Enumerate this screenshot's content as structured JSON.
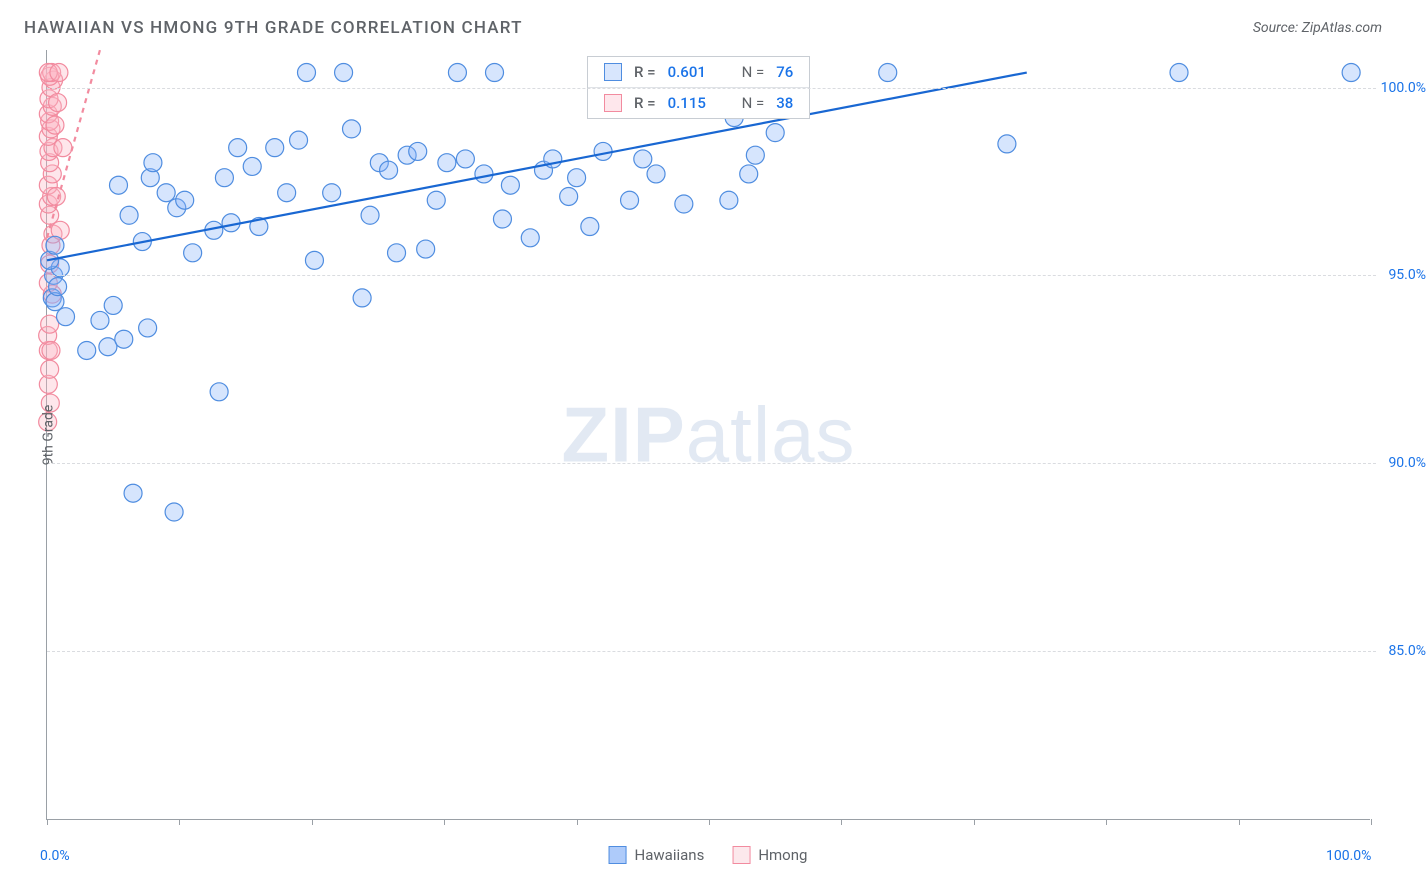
{
  "title": "HAWAIIAN VS HMONG 9TH GRADE CORRELATION CHART",
  "source": "Source: ZipAtlas.com",
  "y_axis_label": "9th Grade",
  "watermark_a": "ZIP",
  "watermark_b": "atlas",
  "chart": {
    "type": "scatter",
    "background_color": "#ffffff",
    "grid_color": "#dadce0",
    "axis_color": "#9aa0a6",
    "tick_label_color": "#1a73e8",
    "label_fontsize": 14,
    "title_fontsize": 17,
    "xlim": [
      0,
      100
    ],
    "ylim": [
      80.5,
      101
    ],
    "x_ticks_minor": [
      0,
      10,
      20,
      30,
      40,
      50,
      60,
      70,
      80,
      90,
      100
    ],
    "y_gridlines": [
      85,
      90,
      95,
      100
    ],
    "x_tick_labels": [
      {
        "v": 0,
        "label": "0.0%"
      },
      {
        "v": 100,
        "label": "100.0%"
      }
    ],
    "y_tick_labels": [
      {
        "v": 85,
        "label": "85.0%"
      },
      {
        "v": 90,
        "label": "90.0%"
      },
      {
        "v": 95,
        "label": "95.0%"
      },
      {
        "v": 100,
        "label": "100.0%"
      }
    ],
    "marker_radius": 9,
    "marker_fill_opacity": 0.35,
    "marker_stroke_width": 1.2,
    "trend_line_width": 2.2,
    "series": [
      {
        "name": "Hawaiians",
        "color": "#8ab4f8",
        "stroke": "#4f8de0",
        "trend_color": "#1967d2",
        "trend_dash": "none",
        "R": "0.601",
        "N": "76",
        "trend": {
          "x1": 0,
          "y1": 95.4,
          "x2": 74,
          "y2": 100.4
        },
        "points": [
          [
            0.4,
            94.4
          ],
          [
            0.5,
            95.0
          ],
          [
            0.6,
            94.3
          ],
          [
            0.8,
            94.7
          ],
          [
            1.0,
            95.2
          ],
          [
            1.4,
            93.9
          ],
          [
            3.0,
            93.0
          ],
          [
            4.0,
            93.8
          ],
          [
            4.6,
            93.1
          ],
          [
            5.0,
            94.2
          ],
          [
            5.4,
            97.4
          ],
          [
            5.8,
            93.3
          ],
          [
            6.2,
            96.6
          ],
          [
            6.5,
            89.2
          ],
          [
            7.2,
            95.9
          ],
          [
            7.6,
            93.6
          ],
          [
            7.8,
            97.6
          ],
          [
            8.0,
            98.0
          ],
          [
            9.0,
            97.2
          ],
          [
            9.6,
            88.7
          ],
          [
            9.8,
            96.8
          ],
          [
            10.4,
            97.0
          ],
          [
            11.0,
            95.6
          ],
          [
            12.6,
            96.2
          ],
          [
            13.0,
            91.9
          ],
          [
            13.4,
            97.6
          ],
          [
            13.9,
            96.4
          ],
          [
            14.4,
            98.4
          ],
          [
            15.5,
            97.9
          ],
          [
            16.0,
            96.3
          ],
          [
            17.2,
            98.4
          ],
          [
            18.1,
            97.2
          ],
          [
            19.0,
            98.6
          ],
          [
            19.6,
            100.4
          ],
          [
            20.2,
            95.4
          ],
          [
            21.5,
            97.2
          ],
          [
            22.4,
            100.4
          ],
          [
            23.0,
            98.9
          ],
          [
            23.8,
            94.4
          ],
          [
            24.4,
            96.6
          ],
          [
            25.1,
            98.0
          ],
          [
            25.8,
            97.8
          ],
          [
            26.4,
            95.6
          ],
          [
            27.2,
            98.2
          ],
          [
            28.0,
            98.3
          ],
          [
            28.6,
            95.7
          ],
          [
            29.4,
            97.0
          ],
          [
            30.2,
            98.0
          ],
          [
            31.0,
            100.4
          ],
          [
            31.6,
            98.1
          ],
          [
            33.0,
            97.7
          ],
          [
            33.8,
            100.4
          ],
          [
            34.4,
            96.5
          ],
          [
            35.0,
            97.4
          ],
          [
            36.5,
            96.0
          ],
          [
            37.5,
            97.8
          ],
          [
            38.2,
            98.1
          ],
          [
            39.4,
            97.1
          ],
          [
            40.0,
            97.6
          ],
          [
            41.0,
            96.3
          ],
          [
            42.0,
            98.3
          ],
          [
            44.0,
            97.0
          ],
          [
            45.0,
            98.1
          ],
          [
            46.0,
            97.7
          ],
          [
            48.1,
            96.9
          ],
          [
            51.5,
            97.0
          ],
          [
            51.9,
            99.2
          ],
          [
            53.0,
            97.7
          ],
          [
            53.5,
            98.2
          ],
          [
            55.0,
            98.8
          ],
          [
            63.5,
            100.4
          ],
          [
            72.5,
            98.5
          ],
          [
            85.5,
            100.4
          ],
          [
            98.5,
            100.4
          ],
          [
            0.2,
            95.4
          ],
          [
            0.6,
            95.8
          ]
        ]
      },
      {
        "name": "Hmong",
        "color": "#fbb8c5",
        "stroke": "#f28b9f",
        "trend_color": "#f28b9f",
        "trend_dash": "5,5",
        "R": "0.115",
        "N": "38",
        "trend": {
          "x1": 0,
          "y1": 96.0,
          "x2": 4,
          "y2": 101
        },
        "points": [
          [
            0.1,
            92.1
          ],
          [
            0.2,
            92.5
          ],
          [
            0.1,
            93.0
          ],
          [
            0.05,
            93.4
          ],
          [
            0.3,
            93.0
          ],
          [
            0.2,
            93.7
          ],
          [
            0.4,
            94.5
          ],
          [
            0.1,
            94.8
          ],
          [
            0.2,
            95.3
          ],
          [
            0.3,
            95.8
          ],
          [
            0.45,
            96.1
          ],
          [
            0.2,
            96.6
          ],
          [
            0.1,
            96.9
          ],
          [
            0.35,
            97.1
          ],
          [
            0.1,
            97.4
          ],
          [
            0.4,
            97.7
          ],
          [
            0.2,
            98.0
          ],
          [
            0.15,
            98.3
          ],
          [
            0.45,
            98.4
          ],
          [
            0.1,
            98.7
          ],
          [
            0.3,
            98.9
          ],
          [
            0.2,
            99.1
          ],
          [
            0.1,
            99.3
          ],
          [
            0.4,
            99.5
          ],
          [
            0.15,
            99.7
          ],
          [
            0.3,
            100.0
          ],
          [
            0.5,
            100.2
          ],
          [
            0.2,
            100.3
          ],
          [
            0.35,
            100.4
          ],
          [
            0.1,
            100.4
          ],
          [
            0.6,
            99.0
          ],
          [
            0.8,
            99.6
          ],
          [
            1.0,
            96.2
          ],
          [
            1.2,
            98.4
          ],
          [
            0.7,
            97.1
          ],
          [
            0.9,
            100.4
          ],
          [
            0.05,
            91.1
          ],
          [
            0.25,
            91.6
          ]
        ]
      }
    ]
  },
  "legend_bottom": [
    {
      "name": "Hawaiians",
      "fill": "#aecbfa",
      "stroke": "#4f8de0"
    },
    {
      "name": "Hmong",
      "fill": "#fce8ec",
      "stroke": "#f28b9f"
    }
  ]
}
